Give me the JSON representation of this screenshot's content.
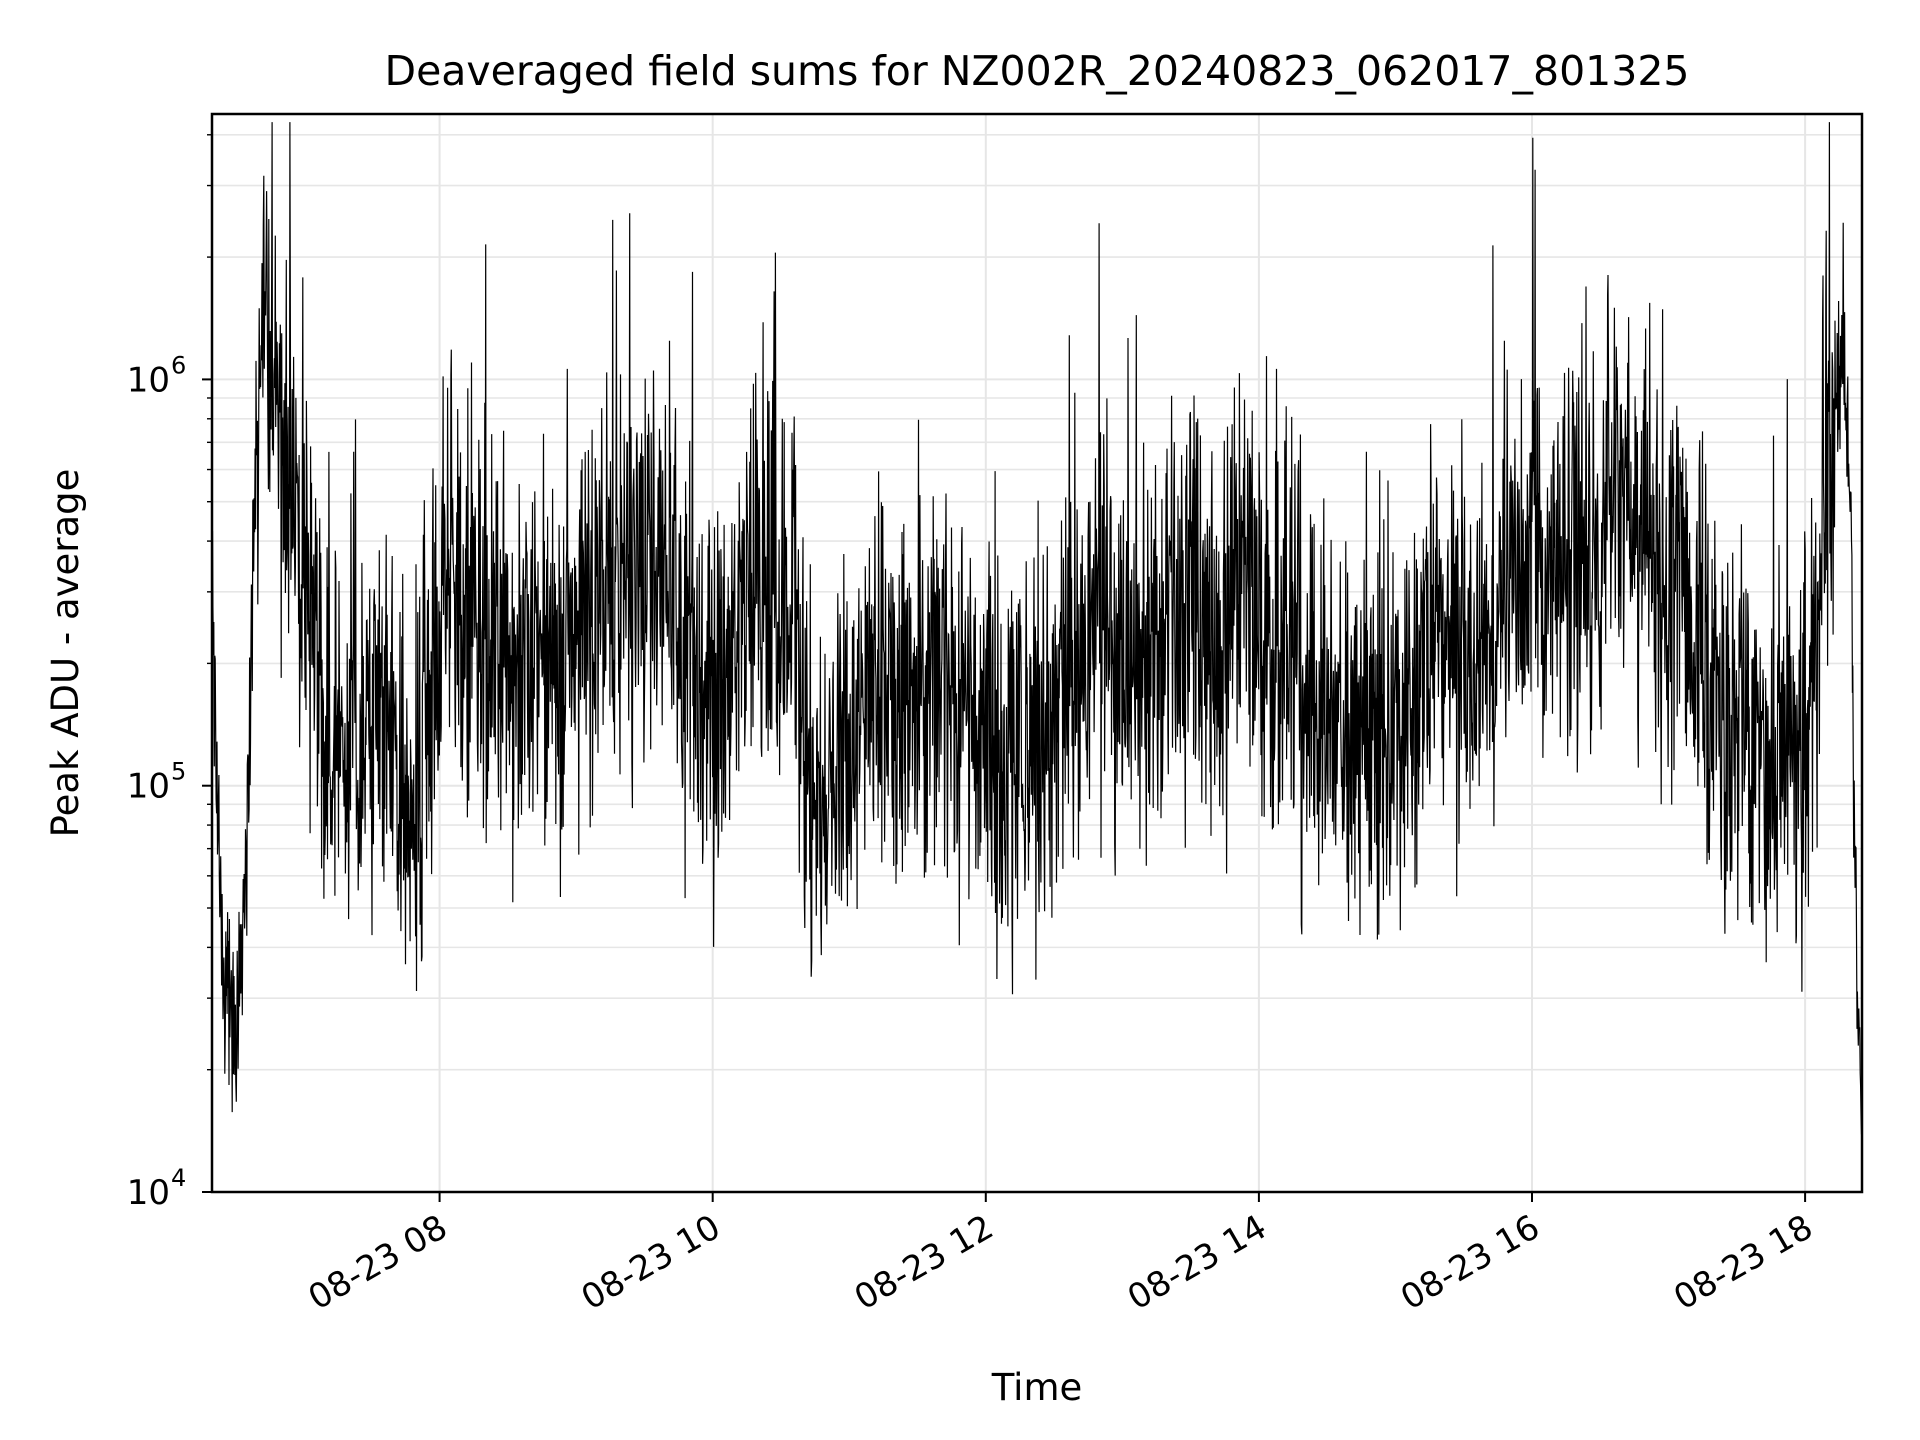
{
  "chart_data": {
    "type": "line",
    "title": "Deaveraged field sums for NZ002R_20240823_062017_801325",
    "xlabel": "Time",
    "ylabel": "Peak ADU - average",
    "y_scale": "log",
    "ylim": [
      10000,
      4500000
    ],
    "xlim": [
      "2024-08-23 06:20",
      "2024-08-23 18:25"
    ],
    "x_ticks": [
      {
        "value": "2024-08-23 08:00",
        "label": "08-23 08"
      },
      {
        "value": "2024-08-23 10:00",
        "label": "08-23 10"
      },
      {
        "value": "2024-08-23 12:00",
        "label": "08-23 12"
      },
      {
        "value": "2024-08-23 14:00",
        "label": "08-23 14"
      },
      {
        "value": "2024-08-23 16:00",
        "label": "08-23 16"
      },
      {
        "value": "2024-08-23 18:00",
        "label": "08-23 18"
      }
    ],
    "y_ticks": [
      {
        "value": 10000,
        "base": "10",
        "exp": "4"
      },
      {
        "value": 100000,
        "base": "10",
        "exp": "5"
      },
      {
        "value": 1000000,
        "base": "10",
        "exp": "6"
      }
    ],
    "grid": true,
    "color": "#000000",
    "series": [
      {
        "x": [
          "2024-08-23 06:20",
          "2024-08-23 06:25",
          "2024-08-23 06:30",
          "2024-08-23 06:35",
          "2024-08-23 06:38",
          "2024-08-23 06:42",
          "2024-08-23 06:48",
          "2024-08-23 06:55",
          "2024-08-23 07:05",
          "2024-08-23 07:15",
          "2024-08-23 07:25",
          "2024-08-23 07:35",
          "2024-08-23 07:45",
          "2024-08-23 07:55",
          "2024-08-23 08:05",
          "2024-08-23 08:15",
          "2024-08-23 08:25",
          "2024-08-23 08:35",
          "2024-08-23 08:45",
          "2024-08-23 08:55",
          "2024-08-23 09:05",
          "2024-08-23 09:15",
          "2024-08-23 09:25",
          "2024-08-23 09:35",
          "2024-08-23 09:45",
          "2024-08-23 09:55",
          "2024-08-23 10:05",
          "2024-08-23 10:15",
          "2024-08-23 10:25",
          "2024-08-23 10:35",
          "2024-08-23 10:45",
          "2024-08-23 10:55",
          "2024-08-23 11:05",
          "2024-08-23 11:15",
          "2024-08-23 11:25",
          "2024-08-23 11:35",
          "2024-08-23 11:45",
          "2024-08-23 11:55",
          "2024-08-23 12:05",
          "2024-08-23 12:15",
          "2024-08-23 12:25",
          "2024-08-23 12:35",
          "2024-08-23 12:45",
          "2024-08-23 12:55",
          "2024-08-23 13:05",
          "2024-08-23 13:15",
          "2024-08-23 13:25",
          "2024-08-23 13:35",
          "2024-08-23 13:45",
          "2024-08-23 13:55",
          "2024-08-23 14:05",
          "2024-08-23 14:15",
          "2024-08-23 14:25",
          "2024-08-23 14:35",
          "2024-08-23 14:45",
          "2024-08-23 14:55",
          "2024-08-23 15:05",
          "2024-08-23 15:15",
          "2024-08-23 15:25",
          "2024-08-23 15:35",
          "2024-08-23 15:45",
          "2024-08-23 15:55",
          "2024-08-23 16:05",
          "2024-08-23 16:15",
          "2024-08-23 16:25",
          "2024-08-23 16:35",
          "2024-08-23 16:45",
          "2024-08-23 16:55",
          "2024-08-23 17:05",
          "2024-08-23 17:15",
          "2024-08-23 17:25",
          "2024-08-23 17:35",
          "2024-08-23 17:45",
          "2024-08-23 17:55",
          "2024-08-23 18:02",
          "2024-08-23 18:08",
          "2024-08-23 18:13",
          "2024-08-23 18:17",
          "2024-08-23 18:20",
          "2024-08-23 18:23",
          "2024-08-23 18:25"
        ],
        "y": [
          300000,
          30000,
          28000,
          60000,
          300000,
          1600000,
          900000,
          400000,
          200000,
          120000,
          130000,
          160000,
          100000,
          170000,
          300000,
          280000,
          240000,
          180000,
          220000,
          200000,
          230000,
          250000,
          400000,
          380000,
          250000,
          190000,
          170000,
          330000,
          280000,
          260000,
          85000,
          120000,
          150000,
          190000,
          180000,
          170000,
          140000,
          130000,
          140000,
          110000,
          130000,
          170000,
          240000,
          230000,
          200000,
          260000,
          230000,
          250000,
          240000,
          310000,
          200000,
          180000,
          150000,
          150000,
          140000,
          130000,
          120000,
          200000,
          240000,
          220000,
          240000,
          380000,
          350000,
          400000,
          350000,
          600000,
          500000,
          350000,
          400000,
          200000,
          120000,
          130000,
          110000,
          120000,
          150000,
          500000,
          800000,
          1300000,
          400000,
          30000,
          20000
        ]
      }
    ]
  }
}
